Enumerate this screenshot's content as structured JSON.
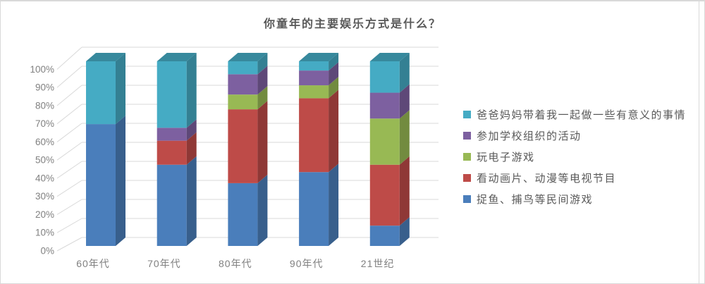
{
  "chart_data": {
    "type": "bar",
    "variant": "3d-100-percent-stacked-column",
    "title": "你童年的主要娱乐方式是什么？",
    "categories": [
      "60年代",
      "70年代",
      "80年代",
      "90年代",
      "21世纪"
    ],
    "series": [
      {
        "name": "捉鱼、捕鸟等民间游戏",
        "color": "#4A7EBB",
        "values": [
          66,
          44,
          34,
          40,
          11
        ]
      },
      {
        "name": "看动画片、动漫等电视节目",
        "color": "#BE4B48",
        "values": [
          0,
          13,
          40,
          40,
          33
        ]
      },
      {
        "name": "玩电子游戏",
        "color": "#98B954",
        "values": [
          0,
          0,
          8,
          7,
          25
        ]
      },
      {
        "name": "参加学校组织的活动",
        "color": "#7D60A0",
        "values": [
          0,
          7,
          11,
          8,
          14
        ]
      },
      {
        "name": "爸爸妈妈带着我一起做一些有意义的事情",
        "color": "#45ABC4",
        "values": [
          34,
          36,
          7,
          5,
          17
        ]
      }
    ],
    "stack_order": "bottom-to-top",
    "legend_position": "right",
    "legend_order": "reverse-of-stack",
    "unit": "%",
    "ylim": [
      0,
      100
    ],
    "yticks": [
      "0%",
      "10%",
      "20%",
      "30%",
      "40%",
      "50%",
      "60%",
      "70%",
      "80%",
      "90%",
      "100%"
    ],
    "grid": true
  },
  "colors": {
    "grid": "#d9d9d9",
    "axis_text": "#808080",
    "title_text": "#595959",
    "legend_text": "#595959",
    "frame_border": "#d9d9d9",
    "background": "#ffffff"
  }
}
